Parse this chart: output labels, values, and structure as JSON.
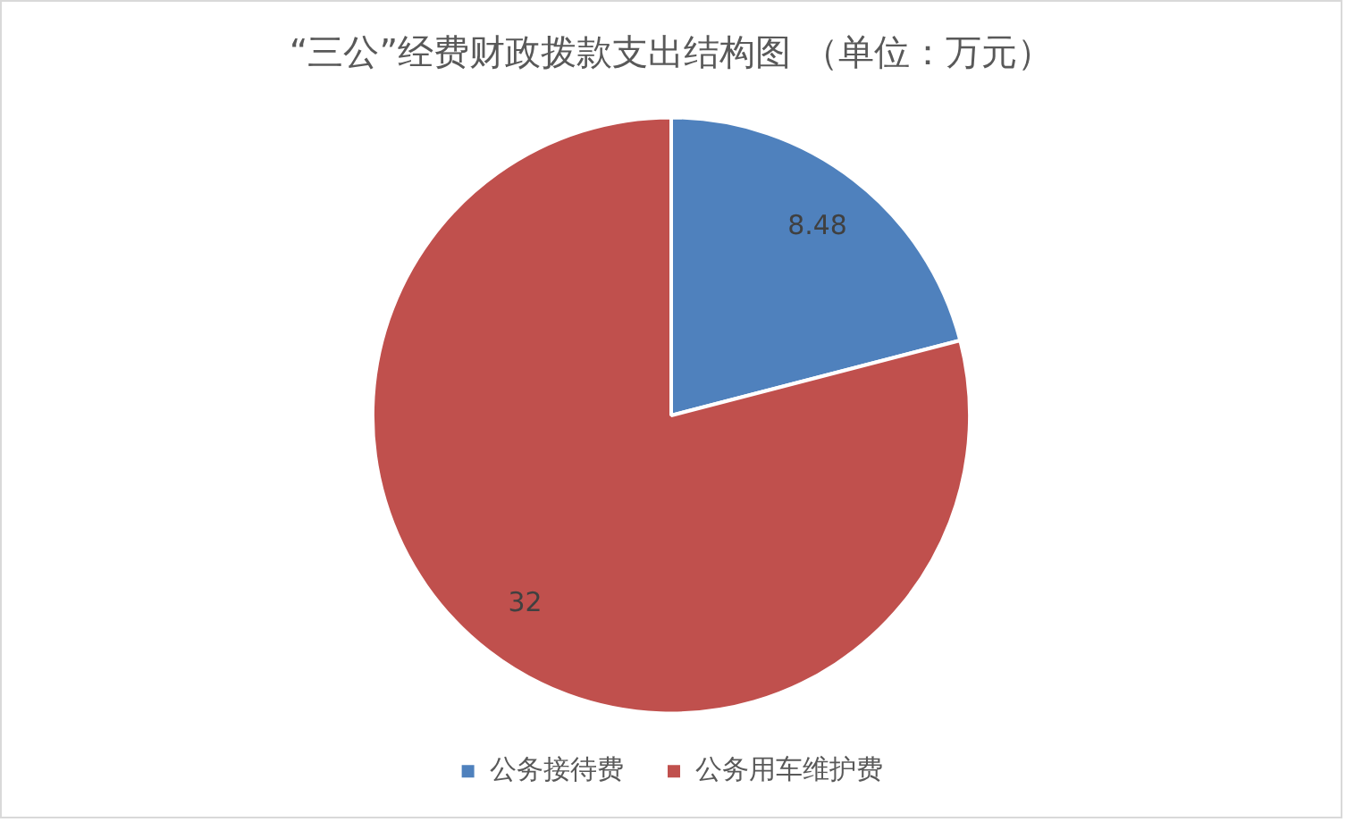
{
  "chart_data": {
    "type": "pie",
    "title": "“三公”经费财政拨款支出结构图 （单位：万元）",
    "categories": [
      "公务接待费",
      "公务用车维护费"
    ],
    "values": [
      8.48,
      32
    ],
    "colors": [
      "#4f81bd",
      "#c0504d"
    ],
    "data_labels": true,
    "legend": "bottom"
  }
}
